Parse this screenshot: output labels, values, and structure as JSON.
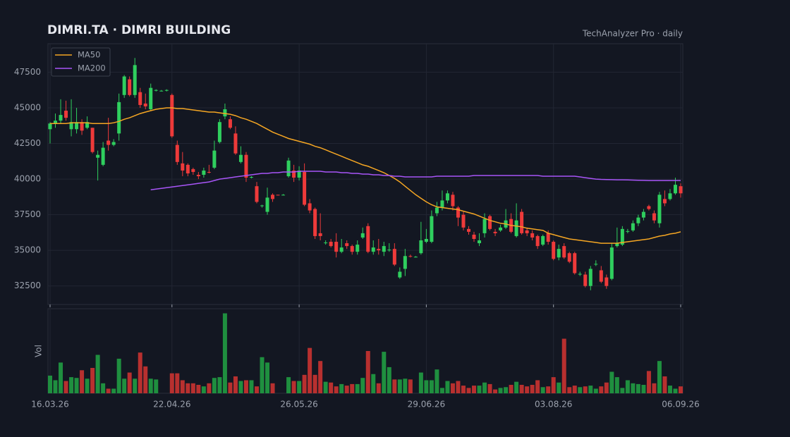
{
  "chart_data": {
    "type": "candlestick",
    "title": "DIMRI.TA  ·  DIMRI BUILDING",
    "subtitle": "TechAnalyzer Pro · daily",
    "categories": [
      "16.03.26",
      null,
      null,
      null,
      null,
      null,
      null,
      null,
      null,
      null,
      null,
      null,
      null,
      null,
      null,
      null,
      null,
      null,
      null,
      null,
      null,
      null,
      null,
      "22.04.26",
      null,
      null,
      null,
      null,
      null,
      null,
      null,
      null,
      null,
      null,
      null,
      null,
      null,
      null,
      null,
      null,
      null,
      null,
      null,
      null,
      null,
      null,
      null,
      "26.05.26",
      null,
      null,
      null,
      null,
      null,
      null,
      null,
      null,
      null,
      null,
      null,
      null,
      null,
      null,
      null,
      null,
      null,
      null,
      null,
      null,
      null,
      null,
      null,
      "29.06.26",
      null,
      null,
      null,
      null,
      null,
      null,
      null,
      null,
      null,
      null,
      null,
      null,
      null,
      null,
      null,
      null,
      null,
      null,
      null,
      null,
      null,
      null,
      null,
      "03.08.26",
      null,
      null,
      null,
      null,
      null,
      null,
      null,
      null,
      null,
      null,
      null,
      null,
      null,
      null,
      null,
      null,
      null,
      null,
      null,
      null,
      null,
      null,
      null,
      "06.09.26"
    ],
    "open": [
      43500,
      43900,
      44100,
      44800,
      43500,
      43500,
      44000,
      43600,
      43600,
      41500,
      41000,
      42700,
      42400,
      43200,
      45900,
      47000,
      45900,
      46100,
      45300,
      44900,
      46200,
      46200,
      46200,
      45900,
      42400,
      41100,
      41000,
      40700,
      40300,
      40300,
      40500,
      40800,
      42600,
      44400,
      44200,
      43200,
      41200,
      41700,
      40100,
      39500,
      38100,
      37700,
      38900,
      38900,
      38900,
      40200,
      40600,
      40100,
      40500,
      38300,
      37900,
      36200,
      35500,
      35600,
      35600,
      34900,
      35500,
      35300,
      34900,
      35900,
      36700,
      34900,
      35100,
      34900,
      35000,
      35100,
      33100,
      33700,
      34600,
      34500,
      34800,
      35600,
      35600,
      37600,
      38000,
      38500,
      38900,
      38000,
      37500,
      36500,
      36100,
      35500,
      36200,
      37400,
      36300,
      36400,
      36600,
      37200,
      36000,
      37700,
      36400,
      36200,
      36000,
      35400,
      36200,
      35600,
      34500,
      35300,
      34800,
      34800,
      33300,
      33300,
      32500,
      34000,
      33600,
      33100,
      33000,
      35300,
      35400,
      36300,
      36400,
      36900,
      37300,
      38100,
      37600,
      36900,
      38600,
      38600,
      39000,
      39500
    ],
    "high": [
      44000,
      44600,
      45600,
      45500,
      45600,
      45000,
      44200,
      44400,
      43600,
      42000,
      42600,
      44300,
      42800,
      46000,
      47300,
      47200,
      48500,
      46400,
      46000,
      46700,
      46300,
      46250,
      46300,
      46000,
      42700,
      41900,
      41100,
      40800,
      40500,
      40800,
      41000,
      42700,
      44200,
      45300,
      44400,
      43700,
      42300,
      41900,
      40200,
      39800,
      38200,
      39400,
      39000,
      38900,
      38950,
      41500,
      41000,
      40900,
      41100,
      38600,
      38000,
      37600,
      35700,
      35800,
      36200,
      35800,
      35700,
      35400,
      35700,
      36600,
      36900,
      35700,
      35800,
      35600,
      35500,
      35500,
      33800,
      35100,
      34700,
      34600,
      37000,
      36500,
      37800,
      38400,
      39200,
      39200,
      39100,
      38100,
      37700,
      36700,
      36300,
      36200,
      37600,
      37500,
      36500,
      36800,
      37900,
      37600,
      38300,
      37900,
      36600,
      36400,
      36100,
      36100,
      36400,
      35700,
      35400,
      35500,
      34900,
      34900,
      33500,
      33500,
      33900,
      34300,
      33900,
      33300,
      35500,
      36600,
      36700,
      36500,
      37100,
      37500,
      37900,
      38200,
      37800,
      39100,
      39200,
      39300,
      40100,
      39700
    ],
    "low": [
      42500,
      43600,
      43900,
      44100,
      43000,
      43200,
      43100,
      43500,
      41800,
      39900,
      40900,
      42000,
      42300,
      42700,
      45700,
      45800,
      45700,
      45000,
      44900,
      44800,
      46150,
      46150,
      46150,
      42900,
      41000,
      40200,
      40200,
      40300,
      40000,
      40100,
      40400,
      40700,
      42500,
      44200,
      43500,
      41700,
      41100,
      39800,
      40050,
      38300,
      38000,
      37500,
      38400,
      38850,
      38850,
      40100,
      39800,
      39900,
      38100,
      37600,
      35800,
      35700,
      35400,
      35200,
      34500,
      34800,
      35100,
      34700,
      34700,
      35800,
      34800,
      34700,
      34700,
      34600,
      34900,
      33900,
      33000,
      33200,
      34500,
      34500,
      34700,
      35500,
      35500,
      37400,
      37800,
      38300,
      37800,
      36700,
      36400,
      36100,
      35600,
      35300,
      35900,
      36400,
      36000,
      36300,
      36500,
      36200,
      35900,
      36100,
      36000,
      35700,
      35100,
      35300,
      35400,
      34300,
      34300,
      34400,
      34100,
      33300,
      33200,
      32400,
      32200,
      33900,
      32700,
      32300,
      32900,
      35200,
      35300,
      36200,
      36300,
      36700,
      37100,
      37800,
      36900,
      36600,
      38100,
      38500,
      38900,
      38700
    ],
    "close": [
      43900,
      44100,
      44500,
      44300,
      44000,
      44000,
      43400,
      44000,
      41900,
      41700,
      42200,
      42400,
      42600,
      45400,
      47200,
      45900,
      48000,
      45200,
      45100,
      46400,
      46250,
      46200,
      46250,
      43000,
      41200,
      40600,
      40400,
      40500,
      40200,
      40600,
      40450,
      42000,
      44000,
      44900,
      43600,
      41800,
      41700,
      40100,
      40150,
      38400,
      38150,
      38700,
      38600,
      38850,
      38900,
      41300,
      40100,
      40600,
      38200,
      37800,
      36000,
      36000,
      35550,
      35300,
      34900,
      35200,
      35300,
      34900,
      35400,
      36200,
      34900,
      35200,
      35000,
      35300,
      35050,
      34000,
      33500,
      34600,
      34550,
      34550,
      35700,
      35800,
      37400,
      38000,
      38500,
      39000,
      38100,
      37300,
      36600,
      36300,
      35800,
      35700,
      37200,
      36500,
      36200,
      36600,
      37100,
      36300,
      37100,
      36200,
      36200,
      35900,
      35300,
      36000,
      35600,
      34400,
      35100,
      34500,
      34200,
      33400,
      33350,
      32500,
      33700,
      34050,
      32800,
      32500,
      35200,
      35500,
      36500,
      36350,
      36900,
      37300,
      37700,
      37900,
      37100,
      38900,
      38300,
      39000,
      39600,
      39000
    ],
    "up_color": "#2fcf5e",
    "down_color": "#ee3a3a",
    "ylim": [
      31200,
      49500
    ],
    "yticks": [
      32500,
      35000,
      37500,
      40000,
      42500,
      45000,
      47500
    ],
    "grid": true,
    "legend": "upper left",
    "series": [
      {
        "name": "MA50",
        "color": "#f5a623",
        "values": [
          43900,
          43900,
          43900,
          43900,
          43950,
          43950,
          43950,
          43950,
          43900,
          43900,
          43900,
          43900,
          43950,
          44050,
          44200,
          44300,
          44450,
          44600,
          44700,
          44800,
          44900,
          44950,
          45000,
          45000,
          44950,
          44950,
          44900,
          44850,
          44800,
          44750,
          44700,
          44700,
          44650,
          44600,
          44550,
          44450,
          44300,
          44200,
          44050,
          43900,
          43700,
          43500,
          43300,
          43150,
          43000,
          42850,
          42750,
          42650,
          42550,
          42450,
          42300,
          42200,
          42050,
          41900,
          41750,
          41600,
          41450,
          41300,
          41150,
          41000,
          40900,
          40750,
          40600,
          40450,
          40250,
          40050,
          39800,
          39500,
          39200,
          38900,
          38650,
          38400,
          38200,
          38050,
          38000,
          37950,
          37900,
          37850,
          37750,
          37650,
          37550,
          37400,
          37250,
          37100,
          37000,
          36900,
          36850,
          36750,
          36700,
          36650,
          36550,
          36500,
          36450,
          36400,
          36200,
          36100,
          36000,
          35900,
          35800,
          35750,
          35700,
          35650,
          35600,
          35550,
          35500,
          35500,
          35500,
          35500,
          35550,
          35600,
          35650,
          35700,
          35750,
          35800,
          35900,
          36000,
          36050,
          36150,
          36200,
          36300
        ]
      },
      {
        "name": "MA200",
        "color": "#a855f7",
        "values": [
          null,
          null,
          null,
          null,
          null,
          null,
          null,
          null,
          null,
          null,
          null,
          null,
          null,
          null,
          null,
          null,
          null,
          null,
          null,
          39250,
          39300,
          39350,
          39400,
          39450,
          39500,
          39550,
          39600,
          39650,
          39700,
          39750,
          39800,
          39900,
          40000,
          40050,
          40100,
          40150,
          40200,
          40250,
          40300,
          40350,
          40400,
          40400,
          40450,
          40450,
          40500,
          40500,
          40500,
          40550,
          40550,
          40550,
          40550,
          40550,
          40500,
          40500,
          40500,
          40450,
          40450,
          40400,
          40400,
          40350,
          40350,
          40300,
          40300,
          40250,
          40250,
          40200,
          40200,
          40150,
          40150,
          40150,
          40150,
          40150,
          40150,
          40200,
          40200,
          40200,
          40200,
          40200,
          40200,
          40200,
          40250,
          40250,
          40250,
          40250,
          40250,
          40250,
          40250,
          40250,
          40250,
          40250,
          40250,
          40250,
          40250,
          40200,
          40200,
          40200,
          40200,
          40200,
          40200,
          40200,
          40150,
          40100,
          40050,
          40000,
          39980,
          39970,
          39960,
          39950,
          39950,
          39940,
          39930,
          39920,
          39910,
          39900,
          39900,
          39900,
          39900,
          39900,
          39900,
          39900
        ]
      }
    ],
    "volume": {
      "label": "Vol",
      "up_color": "#1f8f3f",
      "down_color": "#b8302f",
      "ylim": [
        0,
        110
      ],
      "values": [
        23,
        17,
        40,
        16,
        21,
        20,
        30,
        19,
        33,
        50,
        13,
        6,
        6,
        45,
        19,
        27,
        19,
        53,
        35,
        19,
        18,
        0,
        0,
        26,
        26,
        17,
        13,
        13,
        11,
        9,
        13,
        20,
        21,
        104,
        14,
        22,
        16,
        17,
        17,
        9,
        47,
        40,
        13,
        0,
        0,
        21,
        16,
        16,
        24,
        59,
        24,
        42,
        15,
        14,
        9,
        12,
        10,
        12,
        12,
        20,
        55,
        25,
        13,
        54,
        34,
        18,
        18,
        19,
        18,
        0,
        27,
        17,
        17,
        31,
        7,
        16,
        13,
        16,
        10,
        7,
        10,
        10,
        14,
        12,
        5,
        7,
        8,
        11,
        15,
        11,
        9,
        11,
        17,
        8,
        9,
        21,
        14,
        71,
        8,
        10,
        8,
        9,
        10,
        6,
        9,
        14,
        28,
        21,
        7,
        17,
        13,
        12,
        11,
        29,
        13,
        42,
        22,
        10,
        6,
        9
      ]
    }
  }
}
